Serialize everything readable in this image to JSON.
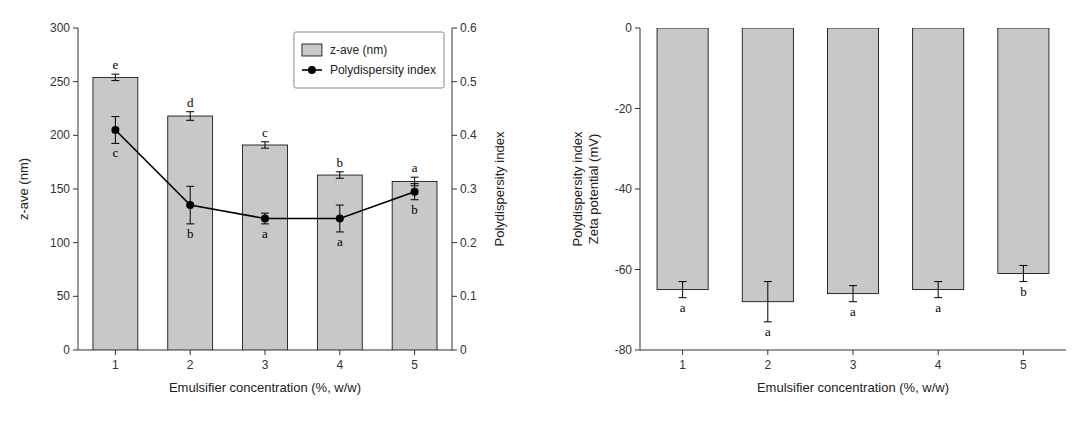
{
  "chart_data": [
    {
      "type": "bar",
      "categories": [
        1,
        2,
        3,
        4,
        5
      ],
      "xlabel": "Emulsifier concentration (%, w/w)",
      "ylabel": "z-ave (nm)",
      "y2label": "Polydispersity index",
      "series": [
        {
          "name": "z-ave (nm)",
          "type": "bar",
          "color": "#c8c8c8",
          "values": [
            254,
            218,
            191,
            163,
            157
          ],
          "errors": [
            3,
            4,
            3,
            3,
            4
          ],
          "letters": [
            "e",
            "d",
            "c",
            "b",
            "a"
          ]
        },
        {
          "name": "Polydispersity index",
          "type": "line",
          "axis": "y2",
          "color": "#000000",
          "marker": "circle",
          "values": [
            0.41,
            0.27,
            0.245,
            0.245,
            0.295
          ],
          "errors": [
            0.025,
            0.035,
            0.01,
            0.025,
            0.015
          ],
          "letters": [
            "c",
            "b",
            "a",
            "a",
            "b"
          ]
        }
      ],
      "ylim": [
        0,
        300
      ],
      "yticks": [
        0,
        50,
        100,
        150,
        200,
        250,
        300
      ],
      "y2lim": [
        0.0,
        0.6
      ],
      "y2ticks": [
        0.0,
        0.1,
        0.2,
        0.3,
        0.4,
        0.5,
        0.6
      ],
      "legend": "upper right",
      "grid": false
    },
    {
      "type": "bar",
      "categories": [
        1,
        2,
        3,
        4,
        5
      ],
      "xlabel": "Emulsifier concentration (%, w/w)",
      "ylabel": "Polydispersity index\nZeta potential (mV)",
      "series": [
        {
          "name": "Zeta potential (mV)",
          "type": "bar",
          "color": "#c8c8c8",
          "values": [
            -65,
            -68,
            -66,
            -65,
            -61
          ],
          "errors": [
            2,
            5,
            2,
            2,
            2
          ],
          "letters": [
            "a",
            "a",
            "a",
            "a",
            "b"
          ]
        }
      ],
      "ylim": [
        -80,
        0
      ],
      "yticks": [
        0,
        -20,
        -40,
        -60,
        -80
      ],
      "grid": false
    }
  ]
}
